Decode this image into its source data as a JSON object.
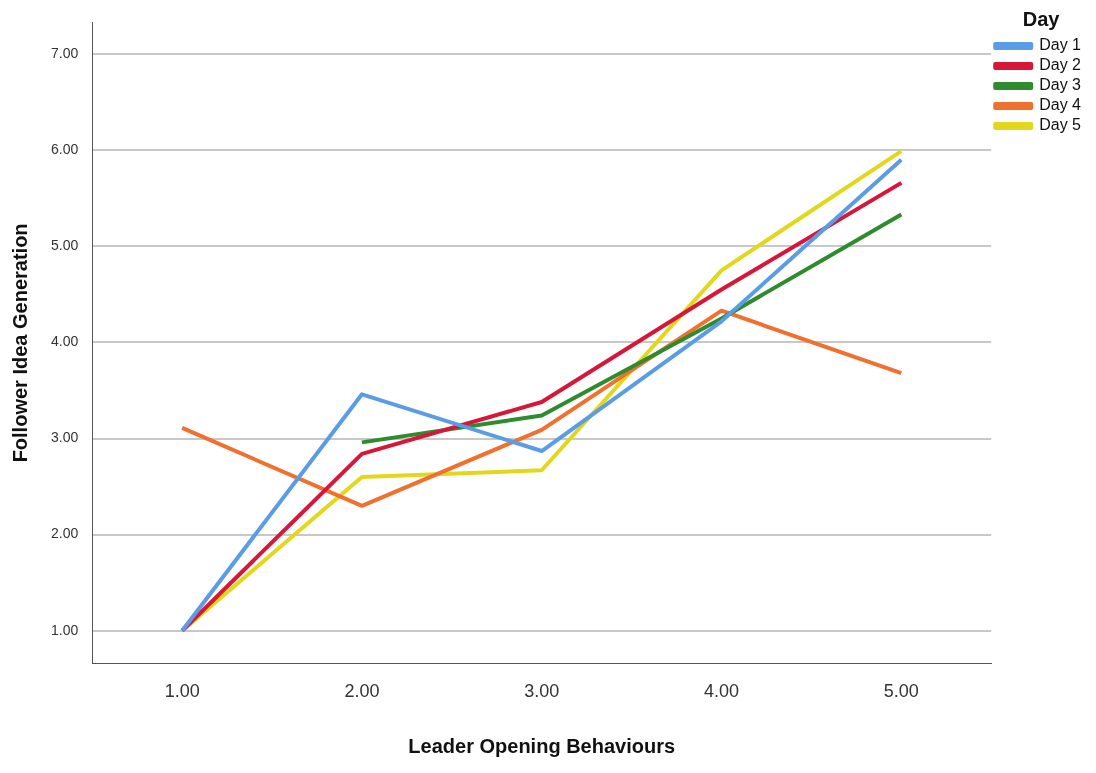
{
  "chart_data": {
    "type": "line",
    "xlabel": "Leader Opening Behaviours",
    "ylabel": "Follower Idea Generation",
    "legend_title": "Day",
    "categories": [
      "1.00",
      "2.00",
      "3.00",
      "4.00",
      "5.00"
    ],
    "series": [
      {
        "name": "Day 1",
        "color": "#5b9ce6",
        "values": [
          1.0,
          3.46,
          2.87,
          4.22,
          5.9
        ]
      },
      {
        "name": "Day 2",
        "color": "#d6173a",
        "values": [
          1.0,
          2.84,
          3.38,
          4.55,
          5.66
        ]
      },
      {
        "name": "Day 3",
        "color": "#2e8b2e",
        "values": [
          null,
          2.96,
          3.24,
          4.25,
          5.33
        ]
      },
      {
        "name": "Day 4",
        "color": "#f07030",
        "values": [
          3.11,
          2.3,
          3.09,
          4.33,
          3.68
        ]
      },
      {
        "name": "Day 5",
        "color": "#e3d71c",
        "values": [
          1.0,
          2.6,
          2.67,
          4.75,
          5.99
        ]
      }
    ],
    "ylim": [
      0.66,
      7.33
    ],
    "yticks": [
      {
        "value": 1,
        "label": "1.00"
      },
      {
        "value": 2,
        "label": "2.00"
      },
      {
        "value": 3,
        "label": "3.00"
      },
      {
        "value": 4,
        "label": "4.00"
      },
      {
        "value": 5,
        "label": "5.00"
      },
      {
        "value": 6,
        "label": "6.00"
      },
      {
        "value": 7,
        "label": "7.00"
      }
    ],
    "grid": "y",
    "legend": "top right",
    "marker": "none",
    "line_style": "solid"
  }
}
